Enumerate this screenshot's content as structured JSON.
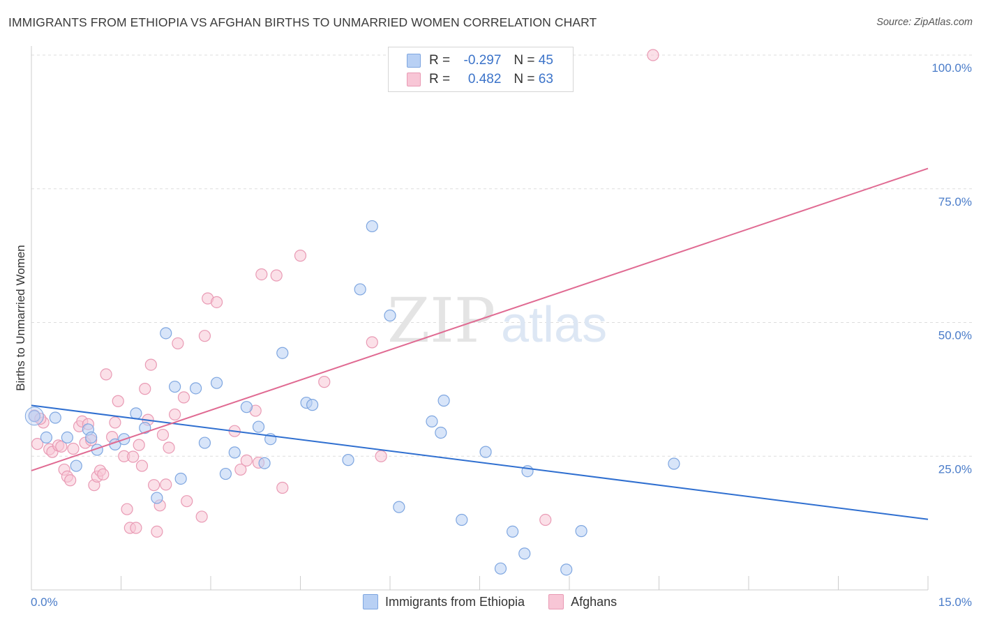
{
  "title": "IMMIGRANTS FROM ETHIOPIA VS AFGHAN BIRTHS TO UNMARRIED WOMEN CORRELATION CHART",
  "source": "Source: ZipAtlas.com",
  "watermark": {
    "zip": "ZIP",
    "atlas": "atlas"
  },
  "legend_stats": {
    "r_label": "R =",
    "n_label": "N =",
    "rows": [
      {
        "r": "-0.297",
        "n": "45"
      },
      {
        "r": "0.482",
        "n": "63"
      }
    ]
  },
  "colors": {
    "blue_fill": "#b8d0f4",
    "blue_stroke": "#7ea6e0",
    "blue_line": "#2f6fd0",
    "pink_fill": "#f8c6d6",
    "pink_stroke": "#e99ab4",
    "pink_line": "#e06a92",
    "grid": "#dddddd",
    "tick_label": "#4a7cc9"
  },
  "chart_data": {
    "type": "scatter",
    "xlabel": "",
    "ylabel": "Births to Unmarried Women",
    "xlim": [
      0,
      15
    ],
    "ylim": [
      0,
      100
    ],
    "x_tick_labels": [
      "0.0%",
      "15.0%"
    ],
    "y_tick_labels": [
      "25.0%",
      "50.0%",
      "75.0%",
      "100.0%"
    ],
    "y_ticks": [
      25,
      50,
      75,
      100
    ],
    "grid": true,
    "legend_position": "bottom-center",
    "series": [
      {
        "name": "Immigrants from Ethiopia",
        "color": "#7ea6e0",
        "trend": {
          "x": [
            0,
            15
          ],
          "y": [
            34.5,
            13.2
          ]
        },
        "points": [
          [
            0.05,
            32.5
          ],
          [
            0.25,
            28.5
          ],
          [
            0.4,
            32.2
          ],
          [
            0.6,
            28.5
          ],
          [
            0.75,
            23.2
          ],
          [
            0.95,
            30.0
          ],
          [
            1.0,
            28.5
          ],
          [
            1.1,
            26.2
          ],
          [
            1.4,
            27.2
          ],
          [
            1.55,
            28.2
          ],
          [
            1.75,
            33.0
          ],
          [
            1.9,
            30.3
          ],
          [
            2.1,
            17.2
          ],
          [
            2.25,
            48.0
          ],
          [
            2.4,
            38.0
          ],
          [
            2.5,
            20.8
          ],
          [
            2.75,
            37.7
          ],
          [
            2.9,
            27.5
          ],
          [
            3.1,
            38.7
          ],
          [
            3.25,
            21.7
          ],
          [
            3.4,
            25.7
          ],
          [
            3.6,
            34.2
          ],
          [
            3.8,
            30.5
          ],
          [
            3.9,
            23.7
          ],
          [
            4.0,
            28.2
          ],
          [
            4.2,
            44.3
          ],
          [
            4.6,
            35.0
          ],
          [
            4.7,
            34.6
          ],
          [
            5.3,
            24.3
          ],
          [
            5.5,
            56.2
          ],
          [
            5.7,
            68.0
          ],
          [
            6.0,
            51.3
          ],
          [
            6.15,
            15.5
          ],
          [
            6.7,
            31.5
          ],
          [
            6.85,
            29.4
          ],
          [
            6.9,
            35.4
          ],
          [
            7.2,
            13.1
          ],
          [
            7.6,
            25.8
          ],
          [
            7.85,
            4.0
          ],
          [
            8.05,
            10.9
          ],
          [
            8.25,
            6.8
          ],
          [
            8.3,
            22.2
          ],
          [
            8.95,
            3.8
          ],
          [
            9.2,
            11.0
          ],
          [
            10.75,
            23.6
          ]
        ]
      },
      {
        "name": "Afghans",
        "color": "#e99ab4",
        "trend": {
          "x": [
            0,
            15
          ],
          "y": [
            22.3,
            78.8
          ]
        },
        "points": [
          [
            0.05,
            32.6
          ],
          [
            0.1,
            27.3
          ],
          [
            0.2,
            31.3
          ],
          [
            0.3,
            26.3
          ],
          [
            0.35,
            25.8
          ],
          [
            0.45,
            27.0
          ],
          [
            0.5,
            26.8
          ],
          [
            0.55,
            22.5
          ],
          [
            0.6,
            21.2
          ],
          [
            0.65,
            20.5
          ],
          [
            0.7,
            26.4
          ],
          [
            0.8,
            30.6
          ],
          [
            0.85,
            31.5
          ],
          [
            0.9,
            27.5
          ],
          [
            0.95,
            31.0
          ],
          [
            1.0,
            28.0
          ],
          [
            1.05,
            19.6
          ],
          [
            1.1,
            21.2
          ],
          [
            1.15,
            22.3
          ],
          [
            1.2,
            21.6
          ],
          [
            1.25,
            40.3
          ],
          [
            1.35,
            28.6
          ],
          [
            1.4,
            31.3
          ],
          [
            1.45,
            35.3
          ],
          [
            1.55,
            25.0
          ],
          [
            1.6,
            15.1
          ],
          [
            1.65,
            11.6
          ],
          [
            1.7,
            24.9
          ],
          [
            1.75,
            11.6
          ],
          [
            1.8,
            27.1
          ],
          [
            1.85,
            23.2
          ],
          [
            1.9,
            37.6
          ],
          [
            1.95,
            31.8
          ],
          [
            2.0,
            42.1
          ],
          [
            2.05,
            19.6
          ],
          [
            2.1,
            10.9
          ],
          [
            2.15,
            15.8
          ],
          [
            2.2,
            29.0
          ],
          [
            2.25,
            19.7
          ],
          [
            2.3,
            26.6
          ],
          [
            2.4,
            32.8
          ],
          [
            2.45,
            46.1
          ],
          [
            2.55,
            36.0
          ],
          [
            2.6,
            16.6
          ],
          [
            2.85,
            13.7
          ],
          [
            2.9,
            47.5
          ],
          [
            2.95,
            54.5
          ],
          [
            3.1,
            53.8
          ],
          [
            3.4,
            29.7
          ],
          [
            3.5,
            22.5
          ],
          [
            3.6,
            24.2
          ],
          [
            3.75,
            33.5
          ],
          [
            3.8,
            23.8
          ],
          [
            3.85,
            59.0
          ],
          [
            4.1,
            58.8
          ],
          [
            4.2,
            19.1
          ],
          [
            4.5,
            62.5
          ],
          [
            4.9,
            38.9
          ],
          [
            5.7,
            46.3
          ],
          [
            5.85,
            25.0
          ],
          [
            8.6,
            13.1
          ],
          [
            10.4,
            100.0
          ],
          [
            0.15,
            32.0
          ]
        ]
      }
    ]
  }
}
